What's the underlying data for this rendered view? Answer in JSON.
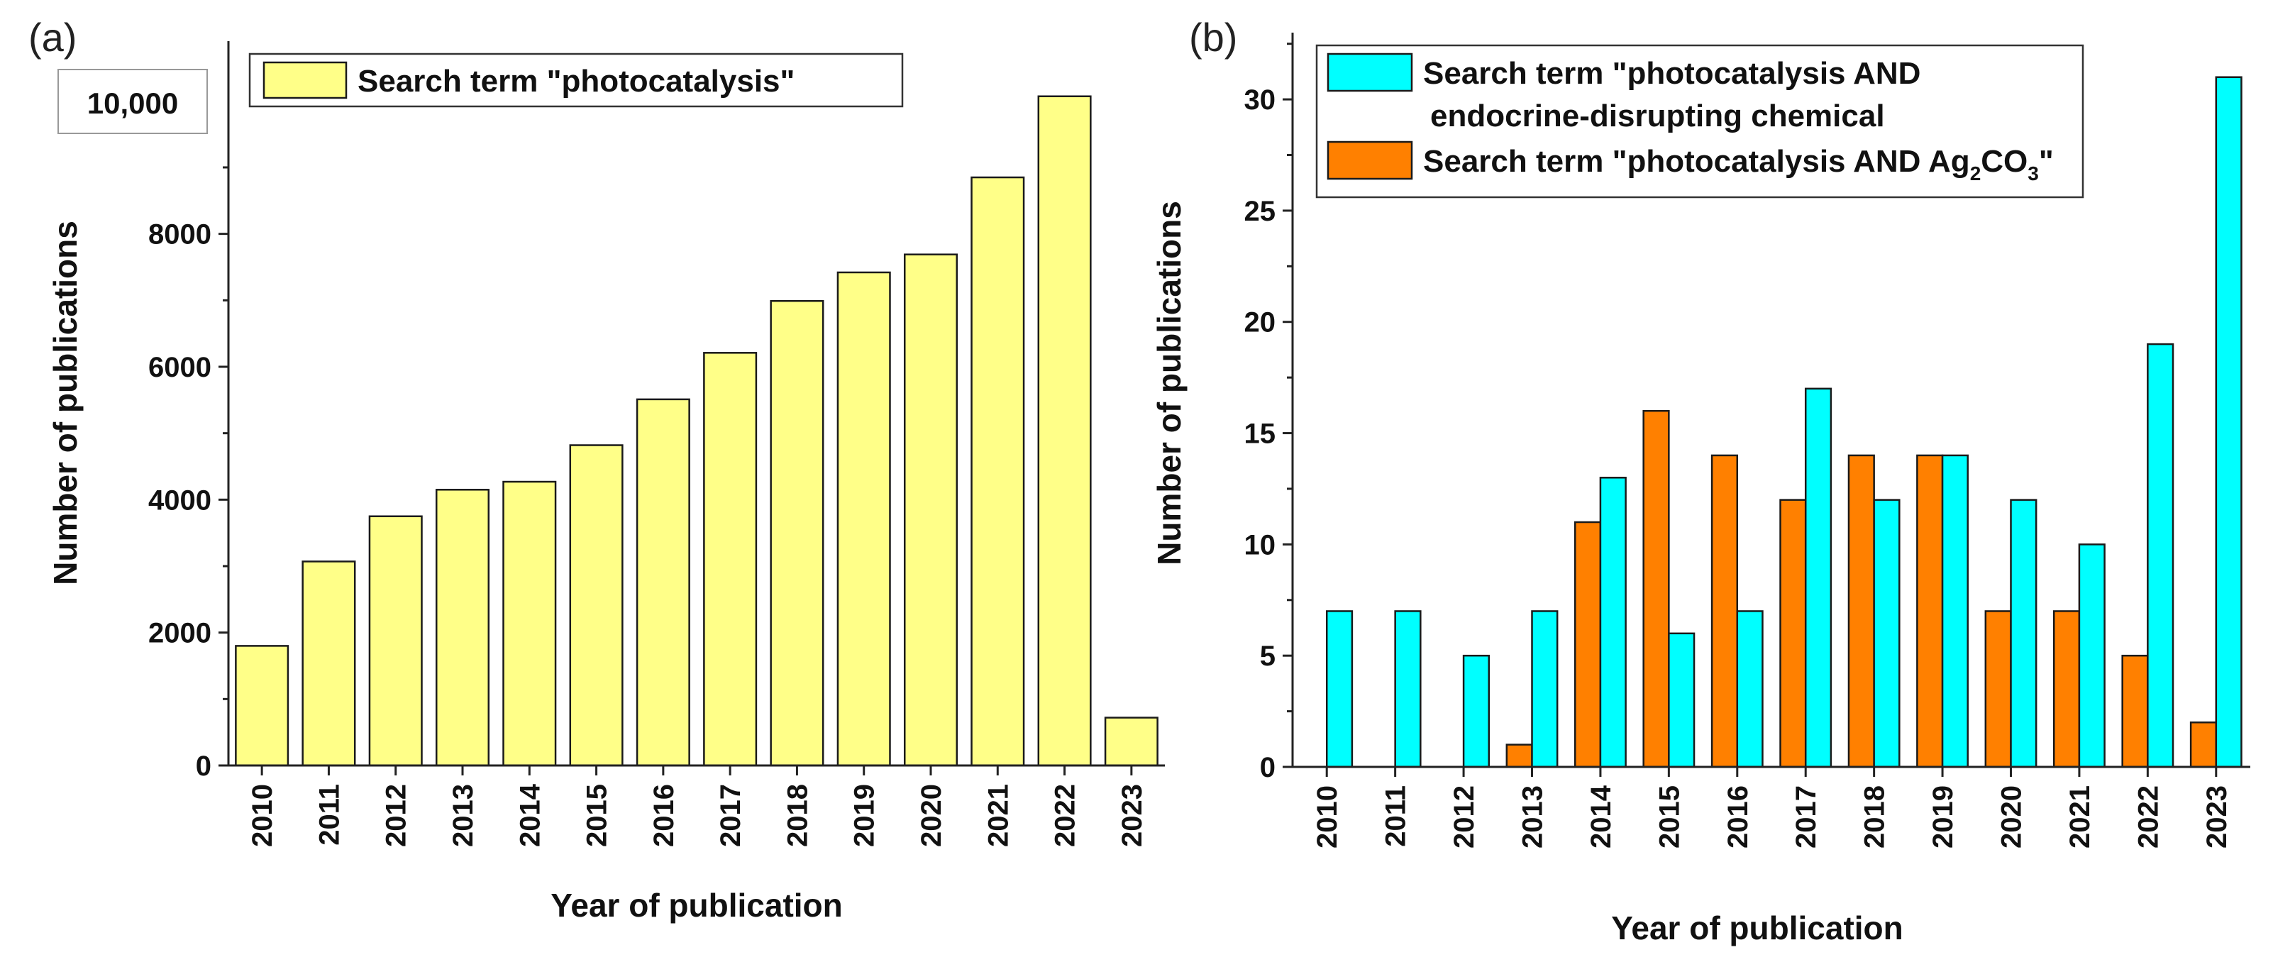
{
  "chart_data": [
    {
      "type": "bar",
      "panel_label": "(a)",
      "categories": [
        "2010",
        "2011",
        "2012",
        "2013",
        "2014",
        "2015",
        "2016",
        "2017",
        "2018",
        "2019",
        "2020",
        "2021",
        "2022",
        "2023"
      ],
      "series": [
        {
          "name": "Search term \"photocatalysis\"",
          "color": "#ffff88",
          "values": [
            1800,
            3070,
            3750,
            4150,
            4270,
            4820,
            5510,
            6210,
            6990,
            7420,
            7690,
            8850,
            10070,
            720
          ]
        }
      ],
      "xlabel": "Year of publication",
      "ylabel": "Number of publications",
      "ylim": [
        0,
        10900
      ],
      "yticks": [
        0,
        2000,
        4000,
        6000,
        8000
      ],
      "ytick_labels": [
        "0",
        "2000",
        "4000",
        "6000",
        "8000"
      ],
      "callout": "10,000",
      "legend": {
        "entries": [
          "Search term \"photocatalysis\""
        ],
        "placement": "top-left"
      }
    },
    {
      "type": "bar",
      "panel_label": "(b)",
      "categories": [
        "2010",
        "2011",
        "2012",
        "2013",
        "2014",
        "2015",
        "2016",
        "2017",
        "2018",
        "2019",
        "2020",
        "2021",
        "2022",
        "2023"
      ],
      "series": [
        {
          "name": "Search term \"photocatalysis AND Ag2CO3\"",
          "color": "#ff8000",
          "values": [
            0,
            0,
            0,
            1,
            11,
            16,
            14,
            12,
            14,
            14,
            7,
            7,
            5,
            2
          ]
        },
        {
          "name": "Search term \"photocatalysis AND endocrine-disrupting chemical",
          "color": "#00ffff",
          "values": [
            7,
            7,
            5,
            7,
            13,
            6,
            7,
            17,
            12,
            14,
            12,
            10,
            19,
            31
          ]
        }
      ],
      "xlabel": "Year of publication",
      "ylabel": "Number of publications",
      "ylim": [
        0,
        33
      ],
      "yticks": [
        0,
        5,
        10,
        15,
        20,
        25,
        30
      ],
      "ytick_labels": [
        "0",
        "5",
        "10",
        "15",
        "20",
        "25",
        "30"
      ],
      "legend": {
        "entry1_line1": "Search term \"photocatalysis AND",
        "entry1_line2": "endocrine-disrupting chemical",
        "entry2_prefix": "Search term \"photocatalysis AND Ag",
        "entry2_sub1": "2",
        "entry2_mid": "CO",
        "entry2_sub2": "3",
        "entry2_suffix": "\"",
        "placement": "top-left"
      }
    }
  ]
}
